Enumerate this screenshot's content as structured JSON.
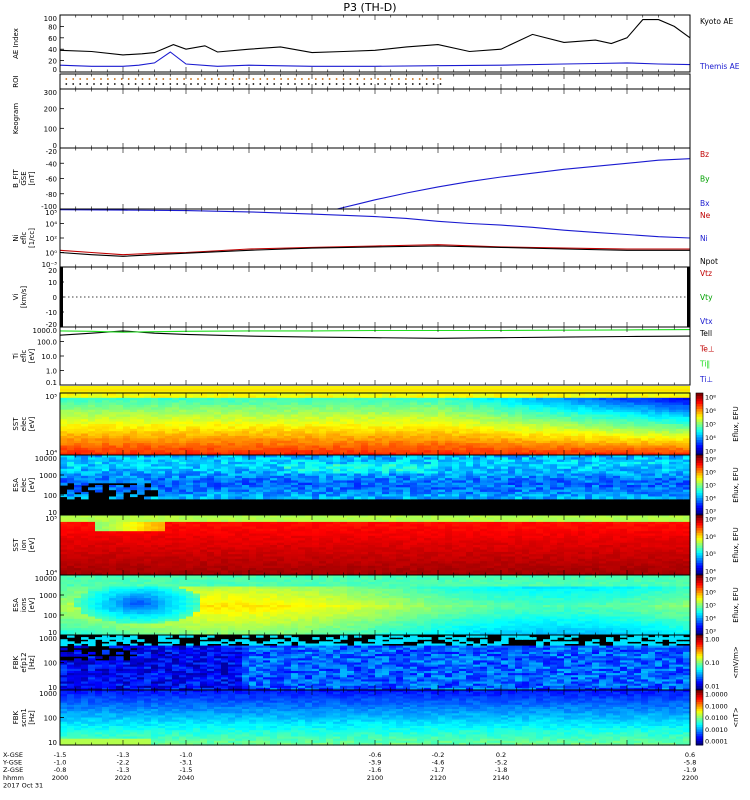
{
  "figure": {
    "title": "P3 (TH-D)"
  },
  "colors": {
    "black": "#000000",
    "blue": "#1a1ad0",
    "red": "#c00000",
    "green": "#00a000",
    "bright_green": "#22dd22"
  },
  "chart_data": [
    {
      "type": "line",
      "panel": "ae",
      "ylabel": "AE Index",
      "ylim": [
        0,
        100
      ],
      "yticks": [
        "0",
        "20",
        "40",
        "60",
        "80",
        "100"
      ],
      "series": [
        {
          "name": "Kyoto AE",
          "color": "#000000",
          "x": [
            2000,
            2010,
            2020,
            2026,
            2030,
            2036,
            2040,
            2046,
            2050,
            2060,
            2070,
            2080,
            2090,
            2100,
            2110,
            2120,
            2130,
            2140,
            2150,
            2160,
            2170,
            2175,
            2180,
            2185,
            2190,
            2195,
            2200
          ],
          "y": [
            38,
            36,
            30,
            32,
            34,
            48,
            40,
            46,
            35,
            40,
            44,
            34,
            36,
            38,
            44,
            48,
            36,
            40,
            66,
            52,
            56,
            50,
            60,
            92,
            92,
            80,
            60
          ]
        },
        {
          "name": "Themis AE",
          "color": "#1a1ad0",
          "x": [
            2000,
            2010,
            2020,
            2025,
            2030,
            2035,
            2040,
            2050,
            2060,
            2080,
            2100,
            2120,
            2140,
            2160,
            2170,
            2180,
            2190,
            2200
          ],
          "y": [
            12,
            10,
            10,
            12,
            16,
            35,
            14,
            10,
            12,
            10,
            10,
            11,
            12,
            14,
            15,
            16,
            14,
            13
          ]
        }
      ]
    },
    {
      "type": "scatter",
      "panel": "roi",
      "ylabel": "ROI"
    },
    {
      "type": "line",
      "panel": "keogram",
      "ylabel": "Keogram",
      "ylim": [
        0,
        300
      ],
      "yticks": [
        "0",
        "100",
        "200",
        "300"
      ]
    },
    {
      "type": "line",
      "panel": "bfield",
      "ylabel": "B_FIT",
      "ylabel2": "GSE",
      "ylabel3": "[nT]",
      "ylim": [
        -100,
        -20
      ],
      "yticks": [
        "-100",
        "-80",
        "-60",
        "-40",
        "-20"
      ],
      "series": [
        {
          "name": "Bz",
          "color": "#c00000"
        },
        {
          "name": "By",
          "color": "#00a000"
        },
        {
          "name": "Bx",
          "color": "#1a1ad0",
          "x": [
            2088,
            2095,
            2100,
            2110,
            2120,
            2130,
            2140,
            2150,
            2160,
            2170,
            2180,
            2190,
            2200
          ],
          "y": [
            -100,
            -93,
            -88,
            -79,
            -71,
            -64,
            -58,
            -53,
            -48,
            -44,
            -40,
            -36,
            -34
          ]
        }
      ]
    },
    {
      "type": "line",
      "panel": "density",
      "ylabel": "Ni",
      "ylabel2": "eflc",
      "ylabel3": "[1/cc]",
      "yscale": "log",
      "ylim": [
        0.001,
        100000
      ],
      "yticks": [
        "10⁻³",
        "10⁰",
        "10²",
        "10⁴",
        "10⁵"
      ],
      "series": [
        {
          "name": "Ne",
          "color": "#c00000",
          "x": [
            2000,
            2010,
            2020,
            2030,
            2040,
            2060,
            2080,
            2100,
            2120,
            2140,
            2160,
            2180,
            2200
          ],
          "y": [
            0.2,
            0.1,
            0.05,
            0.08,
            0.1,
            0.3,
            0.5,
            0.8,
            1.2,
            0.6,
            0.4,
            0.3,
            0.3
          ]
        },
        {
          "name": "Ni",
          "color": "#1a1ad0",
          "x": [
            2000,
            2020,
            2040,
            2060,
            2080,
            2100,
            2110,
            2120,
            2130,
            2140,
            2150,
            2160,
            2170,
            2180,
            2190,
            2200
          ],
          "y": [
            80000,
            70000,
            60000,
            40000,
            20000,
            9000,
            5000,
            2000,
            1000,
            600,
            300,
            120,
            60,
            30,
            15,
            10
          ]
        },
        {
          "name": "Npot",
          "color": "#000000",
          "x": [
            2000,
            2010,
            2020,
            2030,
            2040,
            2060,
            2080,
            2100,
            2120,
            2140,
            2160,
            2180,
            2200
          ],
          "y": [
            0.1,
            0.05,
            0.03,
            0.05,
            0.08,
            0.2,
            0.4,
            0.6,
            0.8,
            0.5,
            0.3,
            0.2,
            0.2
          ]
        }
      ]
    },
    {
      "type": "line",
      "panel": "velocity",
      "ylabel": "Vi",
      "ylabel2": "[km/s]",
      "ylim": [
        -20,
        20
      ],
      "yticks": [
        "-20",
        "-10",
        "0",
        "10",
        "20"
      ],
      "series": [
        {
          "name": "Vtz",
          "color": "#c00000"
        },
        {
          "name": "Vty",
          "color": "#00a000"
        },
        {
          "name": "Vtx",
          "color": "#1a1ad0"
        }
      ]
    },
    {
      "type": "line",
      "panel": "temperature",
      "ylabel": "Ti",
      "ylabel2": "eflc",
      "ylabel3": "[eV]",
      "yscale": "log",
      "ylim": [
        0.1,
        3000
      ],
      "yticks": [
        "0.1",
        "1.0",
        "10.0",
        "100.0",
        "1000.0"
      ],
      "series": [
        {
          "name": "Tell",
          "color": "#000000",
          "x": [
            2000,
            2010,
            2020,
            2030,
            2040,
            2060,
            2080,
            2100,
            2120,
            2140,
            2160,
            2180,
            2200
          ],
          "y": [
            700,
            1000,
            1500,
            1000,
            800,
            600,
            500,
            450,
            400,
            450,
            500,
            550,
            600
          ]
        },
        {
          "name": "Te⊥",
          "color": "#c00000"
        },
        {
          "name": "Ti‖",
          "color": "#22dd22",
          "x": [
            2000,
            2010,
            2020,
            2030,
            2040,
            2060,
            2080,
            2100,
            2120,
            2140,
            2160,
            2180,
            2200
          ],
          "y": [
            1500,
            1400,
            1200,
            1300,
            1400,
            1500,
            1500,
            1600,
            1600,
            1600,
            1700,
            1800,
            1900
          ]
        },
        {
          "name": "Ti⊥",
          "color": "#1a1ad0"
        }
      ]
    },
    {
      "type": "heatmap",
      "panel": "sst_e",
      "ylabel": "SST",
      "ylabel2": "elec",
      "ylabel3": "[eV]",
      "yticks": [
        "10⁴",
        "10⁵"
      ],
      "colorbar": {
        "label": "Eflux, EFU",
        "ticks": [
          "10³",
          "10⁴",
          "10⁵",
          "10⁶",
          "10⁸"
        ]
      }
    },
    {
      "type": "heatmap",
      "panel": "esa_e",
      "ylabel": "ESA",
      "ylabel2": "elec",
      "ylabel3": "[eV]",
      "yticks": [
        "10",
        "100",
        "1000",
        "10000"
      ],
      "colorbar": {
        "label": "Eflux, EFU",
        "ticks": [
          "10³",
          "10⁴",
          "10⁵",
          "10⁶",
          "10⁸"
        ]
      }
    },
    {
      "type": "heatmap",
      "panel": "sst_i",
      "ylabel": "SST",
      "ylabel2": "ion",
      "ylabel3": "[eV]",
      "yticks": [
        "10⁴",
        "10⁵"
      ],
      "colorbar": {
        "label": "Eflux, EFU",
        "ticks": [
          "10⁴",
          "10⁵",
          "10⁶",
          "10⁸"
        ]
      }
    },
    {
      "type": "heatmap",
      "panel": "esa_i",
      "ylabel": "ESA",
      "ylabel2": "ions",
      "ylabel3": "[eV]",
      "yticks": [
        "10",
        "100",
        "1000",
        "10000"
      ],
      "colorbar": {
        "label": "Eflux, EFU",
        "ticks": [
          "10³",
          "10⁴",
          "10⁵",
          "10⁶",
          "10⁸"
        ]
      }
    },
    {
      "type": "heatmap",
      "panel": "fbk_e",
      "ylabel": "FBK",
      "ylabel2": "efp12",
      "ylabel3": "[Hz]",
      "yticks": [
        "10",
        "100",
        "1000"
      ],
      "colorbar": {
        "label": "<mV/m>",
        "ticks": [
          "0.01",
          "0.10",
          "1.00"
        ]
      }
    },
    {
      "type": "heatmap",
      "panel": "fbk_b",
      "ylabel": "FBK",
      "ylabel2": "scm1",
      "ylabel3": "[Hz]",
      "yticks": [
        "10",
        "100",
        "1000"
      ],
      "colorbar": {
        "label": "<nT>",
        "ticks": [
          "0.0001",
          "0.0010",
          "0.0100",
          "0.1000",
          "1.0000"
        ]
      }
    }
  ],
  "xaxis": {
    "x": [
      2000,
      2020,
      2040,
      2100,
      2120,
      2140,
      2200
    ],
    "row_labels": [
      "X-GSE",
      "Y-GSE",
      "Z-GSE",
      "hhmm",
      "2017 Oct 31"
    ],
    "rows": [
      [
        "-1.5",
        "-1.3",
        "-1.0",
        "-0.6",
        "-0.2",
        "0.2",
        "0.6"
      ],
      [
        "-1.0",
        "-2.2",
        "-3.1",
        "-3.9",
        "-4.6",
        "-5.2",
        "-5.8"
      ],
      [
        "-0.8",
        "-1.3",
        "-1.5",
        "-1.6",
        "-1.7",
        "-1.8",
        "-1.9"
      ],
      [
        "2000",
        "2020",
        "2040",
        "2100",
        "2120",
        "2140",
        "2200"
      ]
    ]
  }
}
